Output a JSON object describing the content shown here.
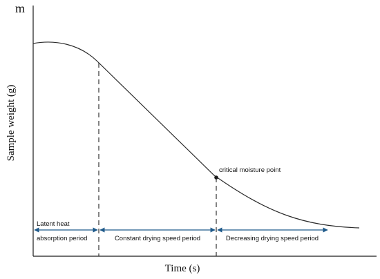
{
  "diagram": {
    "y_axis_letter": "m",
    "y_axis_label": "Sample weight (g)",
    "x_axis_label": "Time (s)",
    "point_label": "critical moisture point",
    "periods": {
      "latent_line1": "Latent heat",
      "latent_line2": "absorption period",
      "constant": "Constant drying speed period",
      "decreasing": "Decreasing drying speed period"
    },
    "colors": {
      "curve": "#2b2b2b",
      "axis": "#1a1a1a",
      "arrow": "#1f5a8a",
      "dashed": "#333333",
      "point": "#1c1c1c"
    }
  }
}
